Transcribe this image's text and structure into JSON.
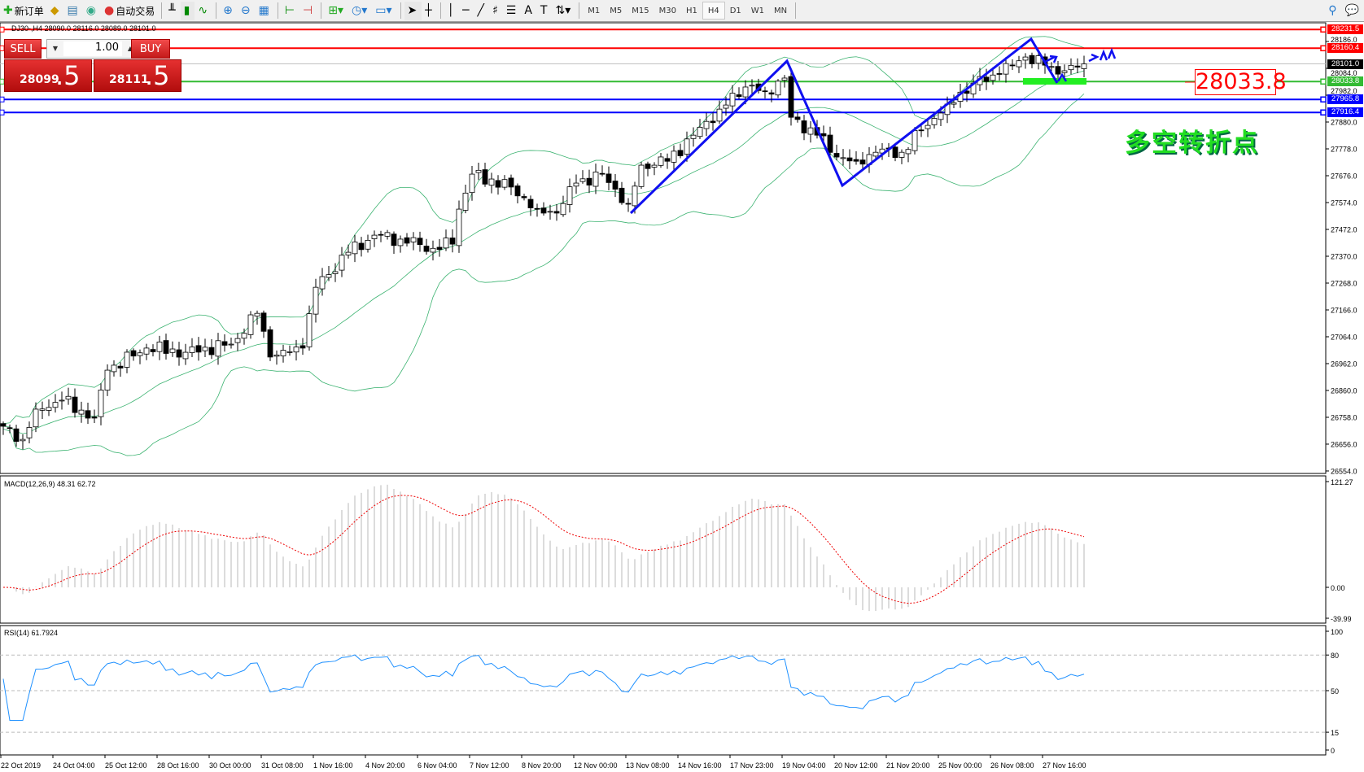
{
  "toolbar": {
    "new_order": "新订单",
    "auto_trading": "自动交易",
    "icons": [
      "new-order-icon",
      "history-icon",
      "server-icon",
      "signal-icon",
      "auto-trading-icon",
      "bar-chart-icon",
      "candlestick-icon",
      "line-chart-icon",
      "zoom-in-icon",
      "zoom-out-icon",
      "tile-windows-icon",
      "autoscroll-icon",
      "chart-shift-icon",
      "indicators-icon",
      "periods-icon",
      "templates-icon",
      "cursor-icon",
      "crosshair-icon",
      "vertical-line-icon",
      "horizontal-line-icon",
      "trendline-icon",
      "fibonacci-icon",
      "fibo-fan-icon",
      "text-icon",
      "text-label-icon",
      "arrows-icon",
      "search-icon",
      "chat-icon"
    ],
    "timeframes": [
      "M1",
      "M5",
      "M15",
      "M30",
      "H1",
      "H4",
      "D1",
      "W1",
      "MN"
    ],
    "active_timeframe": "H4"
  },
  "chart": {
    "header": "DJ30-,H4  28090.0 28116.0 28089.0 28101.0",
    "price_ticks": [
      "28186.0",
      "28084.0",
      "27982.0",
      "27880.0",
      "27778.0",
      "27676.0",
      "27574.0",
      "27472.0",
      "27370.0",
      "27268.0",
      "27166.0",
      "27064.0",
      "26962.0",
      "26860.0",
      "26758.0",
      "26656.0",
      "26554.0"
    ],
    "levels": [
      {
        "price": "28231.5",
        "color": "#ff0000"
      },
      {
        "price": "28160.4",
        "color": "#ff0000"
      },
      {
        "price": "28101.0",
        "color": "#000000"
      },
      {
        "price": "28033.8",
        "color": "#33bb33"
      },
      {
        "price": "27965.8",
        "color": "#0000ff"
      },
      {
        "price": "27916.4",
        "color": "#0000ff"
      }
    ],
    "annotation_price": "28033.8",
    "annotation_text": "多空转折点"
  },
  "trade_panel": {
    "sell": "SELL",
    "buy": "BUY",
    "lot": "1.00",
    "sell_main": "28099",
    "sell_frac": ".5",
    "buy_main": "28111",
    "buy_frac": ".5"
  },
  "macd": {
    "label": "MACD(12,26,9) 48.31 62.72",
    "ticks": [
      "121.27",
      "0.00",
      "-39.99"
    ]
  },
  "rsi": {
    "label": "RSI(14) 61.7924",
    "ticks": [
      "100",
      "80",
      "50",
      "15",
      "0"
    ]
  },
  "time_labels": [
    "22 Oct 2019",
    "24 Oct 04:00",
    "25 Oct 12:00",
    "28 Oct 16:00",
    "30 Oct 00:00",
    "31 Oct 08:00",
    "1 Nov 16:00",
    "4 Nov 20:00",
    "6 Nov 04:00",
    "7 Nov 12:00",
    "8 Nov 20:00",
    "12 Nov 00:00",
    "13 Nov 08:00",
    "14 Nov 16:00",
    "17 Nov 23:00",
    "19 Nov 04:00",
    "20 Nov 12:00",
    "21 Nov 20:00",
    "25 Nov 00:00",
    "26 Nov 08:00",
    "27 Nov 16:00"
  ],
  "chart_data": {
    "type": "candlestick",
    "symbol": "DJ30-",
    "timeframe": "H4",
    "ylim": [
      26554,
      28231.5
    ],
    "close_path": [
      [
        0,
        26724
      ],
      [
        3,
        26674
      ],
      [
        5,
        26789
      ],
      [
        9,
        26823
      ],
      [
        14,
        26755
      ],
      [
        16,
        26937
      ],
      [
        22,
        27021
      ],
      [
        28,
        27005
      ],
      [
        35,
        27036
      ],
      [
        39,
        27153
      ],
      [
        41,
        26987
      ],
      [
        46,
        27021
      ],
      [
        48,
        27252
      ],
      [
        53,
        27385
      ],
      [
        57,
        27450
      ],
      [
        61,
        27435
      ],
      [
        66,
        27400
      ],
      [
        69,
        27416
      ],
      [
        70,
        27549
      ],
      [
        72,
        27682
      ],
      [
        78,
        27633
      ],
      [
        82,
        27549
      ],
      [
        85,
        27534
      ],
      [
        88,
        27648
      ],
      [
        92,
        27682
      ],
      [
        96,
        27568
      ],
      [
        98,
        27716
      ],
      [
        102,
        27731
      ],
      [
        106,
        27830
      ],
      [
        110,
        27929
      ],
      [
        114,
        28013
      ],
      [
        117,
        27997
      ],
      [
        120,
        28047
      ],
      [
        121,
        27898
      ],
      [
        125,
        27830
      ],
      [
        128,
        27747
      ],
      [
        131,
        27731
      ],
      [
        134,
        27765
      ],
      [
        138,
        27765
      ],
      [
        141,
        27849
      ],
      [
        145,
        27948
      ],
      [
        149,
        28028
      ],
      [
        153,
        28062
      ],
      [
        157,
        28127
      ],
      [
        160,
        28096
      ],
      [
        162,
        28062
      ],
      [
        166,
        28101
      ]
    ],
    "indicators": [
      "Bollinger Bands(20,2)",
      "MACD(12,26,9)",
      "RSI(14)"
    ],
    "rsi_levels": [
      80,
      50,
      15
    ]
  }
}
